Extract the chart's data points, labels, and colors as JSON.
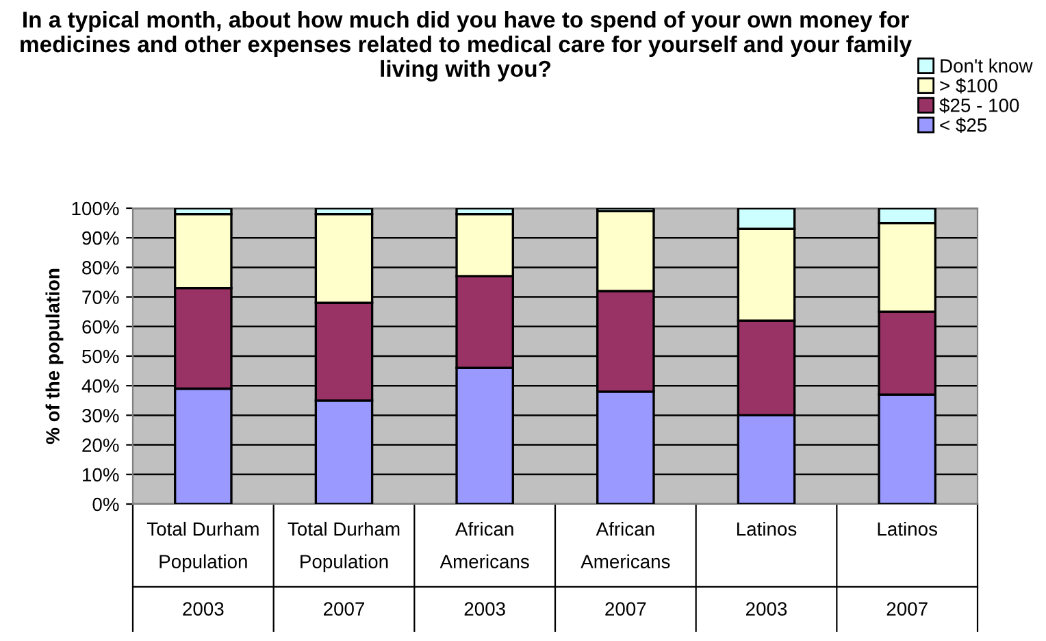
{
  "chart_data": {
    "type": "bar",
    "stacked": true,
    "title": "In a typical month, about how much did you have to spend of your own money for medicines and other expenses related to medical care for yourself and your family living with you?",
    "ylabel": "% of the population",
    "categories": [
      "Total Durham\nPopulation\n2003",
      "Total Durham\nPopulation\n2007",
      "African\nAmericans\n2003",
      "African\nAmericans\n2007",
      "Latinos\n\n2003",
      "Latinos\n\n2007"
    ],
    "series": [
      {
        "name": "< $25",
        "color": "#9999ff",
        "values": [
          39,
          35,
          46,
          38,
          30,
          37
        ]
      },
      {
        "name": "$25 - 100",
        "color": "#993366",
        "values": [
          34,
          33,
          31,
          34,
          32,
          28
        ]
      },
      {
        "name": "> $100",
        "color": "#ffffcc",
        "values": [
          25,
          30,
          21,
          27,
          31,
          30
        ]
      },
      {
        "name": "Don't know",
        "color": "#ccffff",
        "values": [
          2,
          2,
          2,
          1,
          7,
          5
        ]
      }
    ],
    "ylim": [
      0,
      100
    ],
    "yticks": [
      {
        "value": 0,
        "label": "0%"
      },
      {
        "value": 10,
        "label": "10%"
      },
      {
        "value": 20,
        "label": "20%"
      },
      {
        "value": 30,
        "label": "30%"
      },
      {
        "value": 40,
        "label": "40%"
      },
      {
        "value": 50,
        "label": "50%"
      },
      {
        "value": 60,
        "label": "60%"
      },
      {
        "value": 70,
        "label": "70%"
      },
      {
        "value": 80,
        "label": "80%"
      },
      {
        "value": 90,
        "label": "90%"
      },
      {
        "value": 100,
        "label": "100%"
      }
    ],
    "grid": "y",
    "legend": "top right"
  }
}
